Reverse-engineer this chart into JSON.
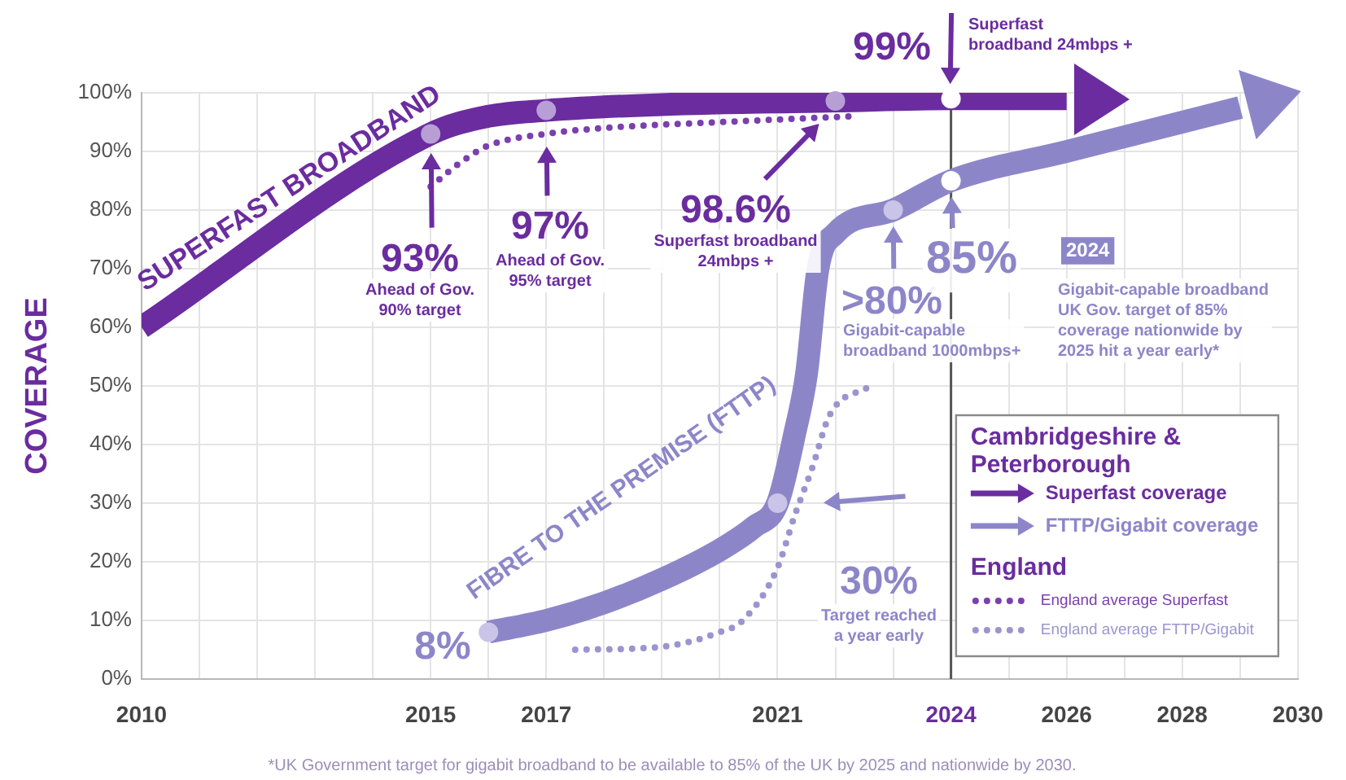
{
  "chart_data": {
    "type": "line",
    "ylabel": "COVERAGE",
    "legend_title": "Cambridgeshire & Peterborough",
    "legend": "bottom right",
    "grid": true,
    "xlim": [
      2010,
      2030
    ],
    "xticks": [
      2010,
      {
        "value": 2011,
        "label": null
      },
      {
        "value": 2012,
        "label": null
      },
      {
        "value": 2013,
        "label": null
      },
      {
        "value": 2014,
        "label": null
      },
      2015,
      {
        "value": 2016,
        "label": null
      },
      2017,
      {
        "value": 2018,
        "label": null
      },
      {
        "value": 2019,
        "label": null
      },
      {
        "value": 2020,
        "label": null
      },
      2021,
      {
        "value": 2022,
        "label": null
      },
      {
        "value": 2023,
        "label": null
      },
      2024,
      {
        "value": 2025,
        "label": null
      },
      2026,
      {
        "value": 2027,
        "label": null
      },
      2028,
      {
        "value": 2029,
        "label": null
      },
      2030
    ],
    "ylim": [
      0,
      100
    ],
    "yticks": [
      {
        "value": 0,
        "label": "0%"
      },
      {
        "value": 10,
        "label": "10%"
      },
      {
        "value": 20,
        "label": "20%"
      },
      {
        "value": 30,
        "label": "30%"
      },
      {
        "value": 40,
        "label": "40%"
      },
      {
        "value": 50,
        "label": "50%"
      },
      {
        "value": 60,
        "label": "60%"
      },
      {
        "value": 70,
        "label": "70%"
      },
      {
        "value": 80,
        "label": "80%"
      },
      {
        "value": 90,
        "label": "90%"
      },
      {
        "value": 100,
        "label": "100%"
      }
    ],
    "ref_lines": [
      {
        "axis": "x",
        "value": 2024,
        "color": "#555555"
      }
    ],
    "series": [
      {
        "name": "Superfast coverage",
        "color": "#6a2c9f",
        "line_style": "solid",
        "x": [
          2010,
          2015,
          2016,
          2017,
          2019,
          2022,
          2024,
          2026
        ],
        "values": [
          60,
          93,
          96,
          97,
          98,
          98.6,
          99,
          99
        ]
      },
      {
        "name": "FTTP/Gigabit coverage",
        "color": "#8c86c9",
        "line_style": "solid",
        "x": [
          2016,
          2017,
          2018,
          2019,
          2020,
          2020.6,
          2021,
          2021.3,
          2021.5,
          2021.7,
          2022,
          2023,
          2024,
          2026,
          2028,
          2029
        ],
        "values": [
          8,
          10,
          13,
          17,
          22,
          26,
          30,
          42,
          52,
          70,
          76,
          80,
          85,
          90,
          95,
          97.5
        ]
      },
      {
        "name": "England average Superfast",
        "color": "#7b3fae",
        "line_style": "dotted",
        "x": [
          2015,
          2015.5,
          2016,
          2017,
          2018,
          2020,
          2022.3
        ],
        "values": [
          84,
          88,
          91,
          93,
          94,
          95,
          96
        ]
      },
      {
        "name": "England average FTTP/Gigabit",
        "color": "#9a95cf",
        "line_style": "dotted",
        "x": [
          2017.5,
          2019,
          2020,
          2020.4,
          2021,
          2021.3,
          2021.6,
          2021.9,
          2022.6
        ],
        "values": [
          5,
          5.5,
          8,
          10,
          19,
          28,
          36,
          45,
          50
        ]
      }
    ],
    "annotations": [
      {
        "text": "SUPERFAST BROADBAND",
        "x": 2012.5,
        "y": 78
      },
      {
        "text": "FIBRE TO THE PREMISE (FTTP)",
        "x": 2019,
        "y": 17
      },
      {
        "text": "93%",
        "x": 2015,
        "y": 93
      },
      "Ahead of Gov.\n90% target",
      {
        "text": "97%",
        "x": 2017,
        "y": 97
      },
      "Ahead of Gov.\n95% target",
      {
        "text": "98.6%",
        "x": 2022,
        "y": 98.6
      },
      "Superfast broadband\n24mbps +",
      {
        "text": "99%",
        "x": 2024,
        "y": 99
      },
      "Superfast\nbroadband 24mbps +",
      {
        "text": ">80%",
        "x": 2023,
        "y": 80
      },
      "Gigabit-capable\nbroadband 1000mbps+",
      {
        "text": "85%",
        "x": 2024,
        "y": 85
      },
      "2024",
      "Gigabit-capable broadband\nUK Gov. target of 85%\ncoverage nationwide by\n2025 hit a year early*",
      {
        "text": "30%",
        "x": 2021,
        "y": 30
      },
      "Target reached\na year early",
      {
        "text": "8%",
        "x": 2016,
        "y": 8
      },
      "*UK Government target for gigabit broadband to be available to 85% of the UK by 2025 and nationwide by 2030.",
      "England"
    ]
  }
}
